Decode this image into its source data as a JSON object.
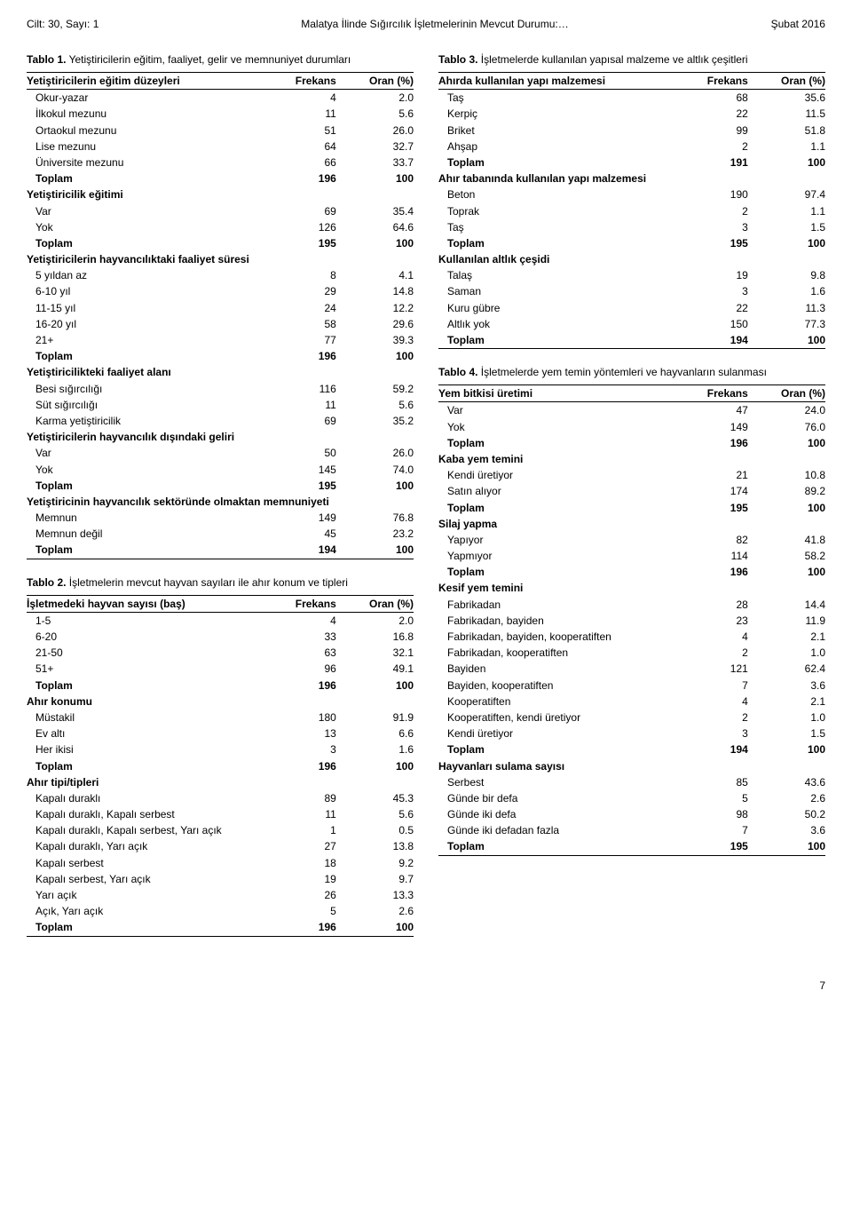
{
  "header": {
    "left": "Cilt: 30, Sayı: 1",
    "center": "Malatya İlinde Sığırcılık İşletmelerinin Mevcut Durumu:…",
    "right": "Şubat 2016"
  },
  "page_number": "7",
  "tables": [
    {
      "id": "t1",
      "title_label": "Tablo 1.",
      "title_text": " Yetiştiricilerin eğitim, faaliyet, gelir ve memnuniyet durumları",
      "columns": [
        "Yetiştiricilerin eğitim düzeyleri",
        "Frekans",
        "Oran (%)"
      ],
      "rows": [
        {
          "l": "Okur-yazar",
          "f": "4",
          "o": "2.0"
        },
        {
          "l": "İlkokul mezunu",
          "f": "11",
          "o": "5.6"
        },
        {
          "l": "Ortaokul mezunu",
          "f": "51",
          "o": "26.0"
        },
        {
          "l": "Lise mezunu",
          "f": "64",
          "o": "32.7"
        },
        {
          "l": "Üniversite mezunu",
          "f": "66",
          "o": "33.7"
        },
        {
          "l": "Toplam",
          "f": "196",
          "o": "100",
          "bold": true
        },
        {
          "section": "Yetiştiricilik eğitimi"
        },
        {
          "l": "Var",
          "f": "69",
          "o": "35.4"
        },
        {
          "l": "Yok",
          "f": "126",
          "o": "64.6"
        },
        {
          "l": "Toplam",
          "f": "195",
          "o": "100",
          "bold": true
        },
        {
          "section": "Yetiştiricilerin hayvancılıktaki faaliyet süresi"
        },
        {
          "l": "5 yıldan az",
          "f": "8",
          "o": "4.1"
        },
        {
          "l": "6-10 yıl",
          "f": "29",
          "o": "14.8"
        },
        {
          "l": "11-15 yıl",
          "f": "24",
          "o": "12.2"
        },
        {
          "l": "16-20 yıl",
          "f": "58",
          "o": "29.6"
        },
        {
          "l": "21+",
          "f": "77",
          "o": "39.3"
        },
        {
          "l": "Toplam",
          "f": "196",
          "o": "100",
          "bold": true
        },
        {
          "section": "Yetiştiricilikteki faaliyet alanı"
        },
        {
          "l": "Besi sığırcılığı",
          "f": "116",
          "o": "59.2"
        },
        {
          "l": "Süt sığırcılığı",
          "f": "11",
          "o": "5.6"
        },
        {
          "l": "Karma yetiştiricilik",
          "f": "69",
          "o": "35.2"
        },
        {
          "section": "Yetiştiricilerin hayvancılık dışındaki geliri"
        },
        {
          "l": "Var",
          "f": "50",
          "o": "26.0"
        },
        {
          "l": "Yok",
          "f": "145",
          "o": "74.0"
        },
        {
          "l": "Toplam",
          "f": "195",
          "o": "100",
          "bold": true
        },
        {
          "section": "Yetiştiricinin hayvancılık sektöründe olmaktan memnuniyeti"
        },
        {
          "l": "Memnun",
          "f": "149",
          "o": "76.8"
        },
        {
          "l": "Memnun değil",
          "f": "45",
          "o": "23.2"
        },
        {
          "l": "Toplam",
          "f": "194",
          "o": "100",
          "bold": true,
          "last": true
        }
      ]
    },
    {
      "id": "t2",
      "title_label": "Tablo 2.",
      "title_text": " İşletmelerin mevcut hayvan sayıları ile ahır konum ve tipleri",
      "columns": [
        "İşletmedeki hayvan sayısı (baş)",
        "Frekans",
        "Oran (%)"
      ],
      "rows": [
        {
          "l": "1-5",
          "f": "4",
          "o": "2.0"
        },
        {
          "l": "6-20",
          "f": "33",
          "o": "16.8"
        },
        {
          "l": "21-50",
          "f": "63",
          "o": "32.1"
        },
        {
          "l": "51+",
          "f": "96",
          "o": "49.1"
        },
        {
          "l": "Toplam",
          "f": "196",
          "o": "100",
          "bold": true
        },
        {
          "section": "Ahır konumu"
        },
        {
          "l": "Müstakil",
          "f": "180",
          "o": "91.9"
        },
        {
          "l": "Ev altı",
          "f": "13",
          "o": "6.6"
        },
        {
          "l": "Her ikisi",
          "f": "3",
          "o": "1.6"
        },
        {
          "l": "Toplam",
          "f": "196",
          "o": "100",
          "bold": true
        },
        {
          "section": "Ahır tipi/tipleri"
        },
        {
          "l": "Kapalı duraklı",
          "f": "89",
          "o": "45.3"
        },
        {
          "l": "Kapalı duraklı, Kapalı serbest",
          "f": "11",
          "o": "5.6"
        },
        {
          "l": "Kapalı duraklı, Kapalı serbest, Yarı açık",
          "f": "1",
          "o": "0.5"
        },
        {
          "l": "Kapalı duraklı, Yarı açık",
          "f": "27",
          "o": "13.8"
        },
        {
          "l": "Kapalı serbest",
          "f": "18",
          "o": "9.2"
        },
        {
          "l": "Kapalı serbest, Yarı açık",
          "f": "19",
          "o": "9.7"
        },
        {
          "l": "Yarı açık",
          "f": "26",
          "o": "13.3"
        },
        {
          "l": "Açık, Yarı açık",
          "f": "5",
          "o": "2.6"
        },
        {
          "l": "Toplam",
          "f": "196",
          "o": "100",
          "bold": true,
          "last": true
        }
      ]
    },
    {
      "id": "t3",
      "title_label": "Tablo 3.",
      "title_text": " İşletmelerde kullanılan yapısal malzeme ve altlık çeşitleri",
      "columns": [
        "Ahırda kullanılan yapı malzemesi",
        "Frekans",
        "Oran (%)"
      ],
      "rows": [
        {
          "l": "Taş",
          "f": "68",
          "o": "35.6"
        },
        {
          "l": "Kerpiç",
          "f": "22",
          "o": "11.5"
        },
        {
          "l": "Briket",
          "f": "99",
          "o": "51.8"
        },
        {
          "l": "Ahşap",
          "f": "2",
          "o": "1.1"
        },
        {
          "l": "Toplam",
          "f": "191",
          "o": "100",
          "bold": true
        },
        {
          "section": "Ahır tabanında kullanılan yapı malzemesi"
        },
        {
          "l": "Beton",
          "f": "190",
          "o": "97.4"
        },
        {
          "l": "Toprak",
          "f": "2",
          "o": "1.1"
        },
        {
          "l": "Taş",
          "f": "3",
          "o": "1.5"
        },
        {
          "l": "Toplam",
          "f": "195",
          "o": "100",
          "bold": true
        },
        {
          "section": "Kullanılan altlık çeşidi"
        },
        {
          "l": "Talaş",
          "f": "19",
          "o": "9.8"
        },
        {
          "l": "Saman",
          "f": "3",
          "o": "1.6"
        },
        {
          "l": "Kuru gübre",
          "f": "22",
          "o": "11.3"
        },
        {
          "l": "Altlık yok",
          "f": "150",
          "o": "77.3"
        },
        {
          "l": "Toplam",
          "f": "194",
          "o": "100",
          "bold": true,
          "last": true
        }
      ]
    },
    {
      "id": "t4",
      "title_label": "Tablo 4.",
      "title_text": " İşletmelerde yem temin yöntemleri ve hayvanların sulanması",
      "columns": [
        "Yem bitkisi üretimi",
        "Frekans",
        "Oran (%)"
      ],
      "rows": [
        {
          "l": "Var",
          "f": "47",
          "o": "24.0"
        },
        {
          "l": "Yok",
          "f": "149",
          "o": "76.0"
        },
        {
          "l": "Toplam",
          "f": "196",
          "o": "100",
          "bold": true
        },
        {
          "section": "Kaba yem temini"
        },
        {
          "l": "Kendi üretiyor",
          "f": "21",
          "o": "10.8"
        },
        {
          "l": "Satın alıyor",
          "f": "174",
          "o": "89.2"
        },
        {
          "l": "Toplam",
          "f": "195",
          "o": "100",
          "bold": true
        },
        {
          "section": "Silaj yapma"
        },
        {
          "l": "Yapıyor",
          "f": "82",
          "o": "41.8"
        },
        {
          "l": "Yapmıyor",
          "f": "114",
          "o": "58.2"
        },
        {
          "l": "Toplam",
          "f": "196",
          "o": "100",
          "bold": true
        },
        {
          "section": "Kesif yem temini"
        },
        {
          "l": "Fabrikadan",
          "f": "28",
          "o": "14.4"
        },
        {
          "l": "Fabrikadan, bayiden",
          "f": "23",
          "o": "11.9"
        },
        {
          "l": "Fabrikadan, bayiden, kooperatiften",
          "f": "4",
          "o": "2.1"
        },
        {
          "l": "Fabrikadan, kooperatiften",
          "f": "2",
          "o": "1.0"
        },
        {
          "l": "Bayiden",
          "f": "121",
          "o": "62.4"
        },
        {
          "l": "Bayiden, kooperatiften",
          "f": "7",
          "o": "3.6"
        },
        {
          "l": "Kooperatiften",
          "f": "4",
          "o": "2.1"
        },
        {
          "l": "Kooperatiften, kendi üretiyor",
          "f": "2",
          "o": "1.0"
        },
        {
          "l": "Kendi üretiyor",
          "f": "3",
          "o": "1.5"
        },
        {
          "l": "Toplam",
          "f": "194",
          "o": "100",
          "bold": true
        },
        {
          "section": "Hayvanları sulama sayısı"
        },
        {
          "l": "Serbest",
          "f": "85",
          "o": "43.6"
        },
        {
          "l": "Günde bir defa",
          "f": "5",
          "o": "2.6"
        },
        {
          "l": "Günde iki defa",
          "f": "98",
          "o": "50.2"
        },
        {
          "l": "Günde iki defadan fazla",
          "f": "7",
          "o": "3.6"
        },
        {
          "l": "Toplam",
          "f": "195",
          "o": "100",
          "bold": true,
          "last": true
        }
      ]
    }
  ],
  "layout": {
    "left_column_tables": [
      "t1",
      "t2"
    ],
    "right_column_tables": [
      "t3",
      "t4"
    ]
  }
}
